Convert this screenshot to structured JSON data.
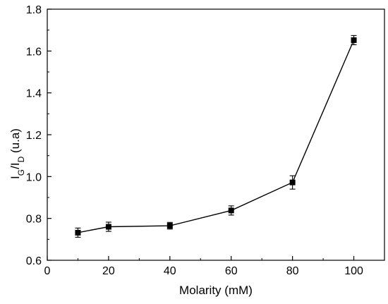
{
  "chart_data": {
    "type": "scatter",
    "title": "",
    "xlabel": "Molarity (mM)",
    "ylabel": {
      "main": "I",
      "sub1": "G",
      "sep": "/I",
      "sub2": "D",
      "unit": " (u.a)"
    },
    "xlim": [
      0,
      110
    ],
    "ylim": [
      0.6,
      1.8
    ],
    "xticks": [
      0,
      20,
      40,
      60,
      80,
      100
    ],
    "yticks": [
      0.6,
      0.8,
      1.0,
      1.2,
      1.4,
      1.6,
      1.8
    ],
    "xtick_labels": [
      "0",
      "20",
      "40",
      "60",
      "80",
      "100"
    ],
    "ytick_labels": [
      "0.6",
      "0.8",
      "1.0",
      "1.2",
      "1.4",
      "1.6",
      "1.8"
    ],
    "grid": false,
    "legend": "none",
    "series": [
      {
        "marker": "square",
        "line": "solid",
        "color": "#000000",
        "x": [
          10,
          20,
          40,
          60,
          80,
          100
        ],
        "y": [
          0.732,
          0.76,
          0.765,
          0.838,
          0.972,
          1.652
        ],
        "error": [
          0.022,
          0.022,
          0.016,
          0.022,
          0.032,
          0.022
        ]
      }
    ]
  }
}
